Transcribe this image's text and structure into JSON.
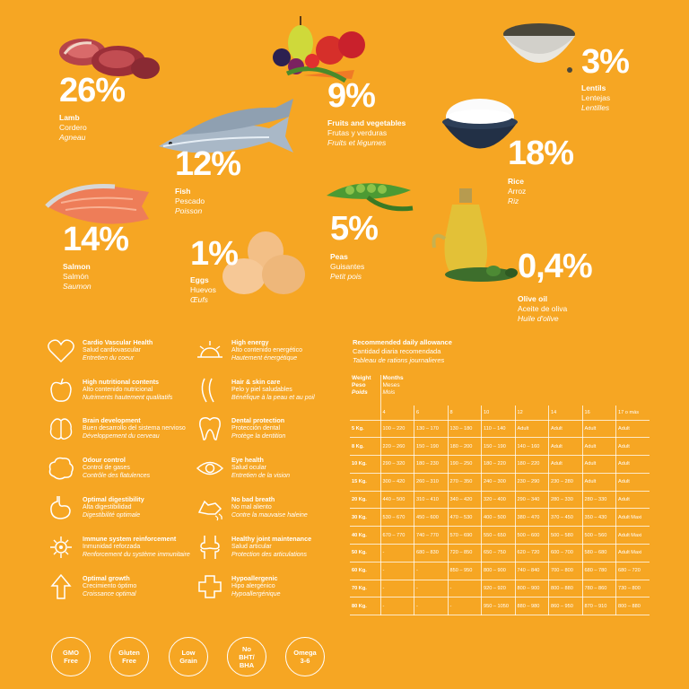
{
  "ingredients": [
    {
      "pct": "26%",
      "en": "Lamb",
      "es": "Cordero",
      "fr": "Agneau"
    },
    {
      "pct": "9%",
      "en": "Fruits and vegetables",
      "es": "Frutas y verduras",
      "fr": "Fruits et légumes"
    },
    {
      "pct": "3%",
      "en": "Lentils",
      "es": "Lentejas",
      "fr": "Lentilles"
    },
    {
      "pct": "12%",
      "en": "Fish",
      "es": "Pescado",
      "fr": "Poisson"
    },
    {
      "pct": "18%",
      "en": "Rice",
      "es": "Arroz",
      "fr": "Riz"
    },
    {
      "pct": "14%",
      "en": "Salmon",
      "es": "Salmón",
      "fr": "Saumon"
    },
    {
      "pct": "5%",
      "en": "Peas",
      "es": "Guisantes",
      "fr": "Petit pois"
    },
    {
      "pct": "1%",
      "en": "Eggs",
      "es": "Huevos",
      "fr": "Œufs"
    },
    {
      "pct": "0,4%",
      "en": "Olive oil",
      "es": "Aceite de oliva",
      "fr": "Huile d'olive"
    }
  ],
  "benefits": [
    {
      "icon": "heart-icon",
      "en": "Cardio Vascular Health",
      "es": "Salud cardiovascular",
      "fr": "Entretien du coeur"
    },
    {
      "icon": "sun-icon",
      "en": "High energy",
      "es": "Alto contenido energético",
      "fr": "Hautement énergétique"
    },
    {
      "icon": "apple-icon",
      "en": "High nutritional contents",
      "es": "Alto contenido nutricional",
      "fr": "Nutriments hautement qualitatifs"
    },
    {
      "icon": "hair-icon",
      "en": "Hair & skin care",
      "es": "Pelo y piel saludables",
      "fr": "Bénéfique à la peau et au poil"
    },
    {
      "icon": "brain-icon",
      "en": "Brain development",
      "es": "Buen desarrollo del sistema nervioso",
      "fr": "Développement du cerveau"
    },
    {
      "icon": "tooth-icon",
      "en": "Dental protection",
      "es": "Protección dental",
      "fr": "Protège la dentition"
    },
    {
      "icon": "cloud-icon",
      "en": "Odour control",
      "es": "Control de gases",
      "fr": "Contrôle des flatulences"
    },
    {
      "icon": "eye-icon",
      "en": "Eye health",
      "es": "Salud ocular",
      "fr": "Entretien de la vision"
    },
    {
      "icon": "stomach-icon",
      "en": "Optimal digestibility",
      "es": "Alta digestibilidad",
      "fr": "Digestibilité optimale"
    },
    {
      "icon": "dog-breath-icon",
      "en": "No bad breath",
      "es": "No mal aliento",
      "fr": "Contre la mauvaise haleine"
    },
    {
      "icon": "virus-shield-icon",
      "en": "Immune system reinforcement",
      "es": "Inmunidad reforzada",
      "fr": "Renforcement du système immunitaire"
    },
    {
      "icon": "joint-icon",
      "en": "Healthy joint maintenance",
      "es": "Salud articular",
      "fr": "Protection des articulations"
    },
    {
      "icon": "arrow-up-icon",
      "en": "Optimal growth",
      "es": "Crecimiento óptimo",
      "fr": "Croissance optimal"
    },
    {
      "icon": "cross-icon",
      "en": "Hypoallergenic",
      "es": "Hipo alergénico",
      "fr": "Hypoallergénique"
    }
  ],
  "badges": [
    "GMO\nFree",
    "Gluten\nFree",
    "Low\nGrain",
    "No\nBHT/\nBHA",
    "Omega\n3-6"
  ],
  "ration": {
    "title_en": "Recommended daily allowance",
    "title_es": "Cantidad diaria recomendada",
    "title_fr": "Tableau de rations journalieres",
    "weight_en": "Weight",
    "weight_es": "Peso",
    "weight_fr": "Poids",
    "months_en": "Months",
    "months_es": "Meses",
    "months_fr": "Mois",
    "month_cols": [
      "4",
      "6",
      "8",
      "10",
      "12",
      "14",
      "16",
      "17 o más"
    ],
    "rows": [
      {
        "w": "5 Kg.",
        "v": [
          "100 – 220",
          "130 – 170",
          "130 – 180",
          "110 – 140",
          "Adult",
          "Adult",
          "Adult",
          "Adult"
        ]
      },
      {
        "w": "8 Kg.",
        "v": [
          "220 – 260",
          "150 – 190",
          "180 – 200",
          "150 – 190",
          "140 – 160",
          "Adult",
          "Adult",
          "Adult"
        ]
      },
      {
        "w": "10 Kg.",
        "v": [
          "290 – 320",
          "180 – 230",
          "190 – 250",
          "180 – 220",
          "180 – 220",
          "Adult",
          "Adult",
          "Adult"
        ]
      },
      {
        "w": "15 Kg.",
        "v": [
          "300 – 420",
          "260 – 310",
          "270 – 350",
          "240 – 300",
          "230 – 290",
          "230 – 280",
          "Adult",
          "Adult"
        ]
      },
      {
        "w": "20 Kg.",
        "v": [
          "440 – 500",
          "310 – 410",
          "340 – 420",
          "320 – 400",
          "290 – 340",
          "280 – 330",
          "280 – 330",
          "Adult"
        ]
      },
      {
        "w": "30 Kg.",
        "v": [
          "530 – 670",
          "450 – 600",
          "470 – 530",
          "400 – 500",
          "380 – 470",
          "370 – 450",
          "350 – 430",
          "Adult Maxi"
        ]
      },
      {
        "w": "40 Kg.",
        "v": [
          "670 – 770",
          "740 – 770",
          "570 – 690",
          "550 – 650",
          "500 – 600",
          "500 – 580",
          "500 – 560",
          "Adult Maxi"
        ]
      },
      {
        "w": "50 Kg.",
        "v": [
          "-",
          "680 – 830",
          "720 – 850",
          "650 – 750",
          "620 – 720",
          "600 – 700",
          "580 – 680",
          "Adult Maxi"
        ]
      },
      {
        "w": "60 Kg.",
        "v": [
          "-",
          "-",
          "850 – 950",
          "800 – 900",
          "740 – 840",
          "700 – 800",
          "680 – 780",
          "680 – 720"
        ]
      },
      {
        "w": "70 Kg.",
        "v": [
          "-",
          "-",
          "-",
          "920 – 920",
          "800 – 900",
          "800 – 880",
          "780 – 860",
          "730 – 800"
        ]
      },
      {
        "w": "80 Kg.",
        "v": [
          "-",
          "-",
          "-",
          "950 – 1050",
          "880 – 980",
          "860 – 950",
          "870 – 910",
          "800 – 880"
        ]
      }
    ]
  },
  "colors": {
    "background": "#F6A623",
    "text": "#FFFFFF"
  }
}
